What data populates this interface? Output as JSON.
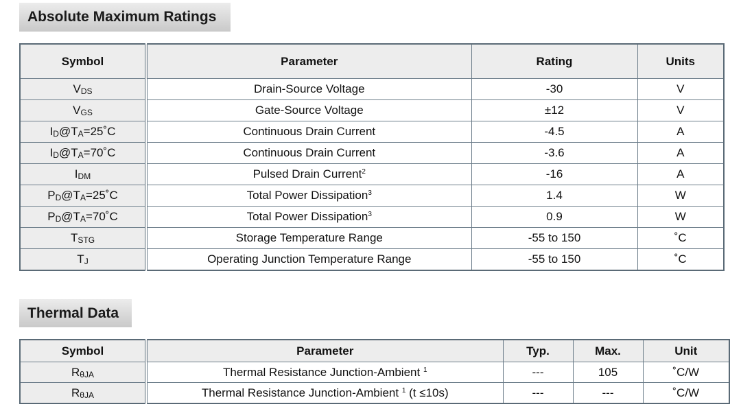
{
  "abs_max": {
    "title": "Absolute Maximum Ratings",
    "headers": [
      "Symbol",
      "Parameter",
      "Rating",
      "Units"
    ],
    "rows": [
      {
        "sym_main": "V",
        "sym_sub": "DS",
        "sym_rest": "",
        "param": "Drain-Source Voltage",
        "param_sup": "",
        "rating": "-30",
        "unit": "V"
      },
      {
        "sym_main": "V",
        "sym_sub": "GS",
        "sym_rest": "",
        "param": "Gate-Source Voltage",
        "param_sup": "",
        "rating": "±12",
        "unit": "V"
      },
      {
        "sym_main": "I",
        "sym_sub": "D",
        "sym_rest": "@T",
        "sym_sub2": "A",
        "sym_rest2": "=25˚C",
        "param": "Continuous Drain Current",
        "param_sup": "",
        "rating": "-4.5",
        "unit": "A"
      },
      {
        "sym_main": "I",
        "sym_sub": "D",
        "sym_rest": "@T",
        "sym_sub2": "A",
        "sym_rest2": "=70˚C",
        "param": "Continuous Drain Current",
        "param_sup": "",
        "rating": "-3.6",
        "unit": "A"
      },
      {
        "sym_main": "I",
        "sym_sub": "DM",
        "sym_rest": "",
        "param": "Pulsed Drain Current",
        "param_sup": "2",
        "rating": "-16",
        "unit": "A"
      },
      {
        "sym_main": "P",
        "sym_sub": "D",
        "sym_rest": "@T",
        "sym_sub2": "A",
        "sym_rest2": "=25˚C",
        "param": "Total Power Dissipation",
        "param_sup": "3",
        "rating": "1.4",
        "unit": "W"
      },
      {
        "sym_main": "P",
        "sym_sub": "D",
        "sym_rest": "@T",
        "sym_sub2": "A",
        "sym_rest2": "=70˚C",
        "param": "Total Power Dissipation",
        "param_sup": "3",
        "rating": "0.9",
        "unit": "W"
      },
      {
        "sym_main": "T",
        "sym_sub": "STG",
        "sym_rest": "",
        "param": "Storage Temperature Range",
        "param_sup": "",
        "rating": "-55 to 150",
        "unit": "˚C"
      },
      {
        "sym_main": "T",
        "sym_sub": "J",
        "sym_rest": "",
        "param": "Operating Junction Temperature Range",
        "param_sup": "",
        "rating": "-55 to 150",
        "unit": "˚C"
      }
    ]
  },
  "thermal": {
    "title": "Thermal Data",
    "headers": [
      "Symbol",
      "Parameter",
      "Typ.",
      "Max.",
      "Unit"
    ],
    "rows": [
      {
        "sym_main": "R",
        "sym_sub": "θJA",
        "param": "Thermal Resistance Junction-Ambient ",
        "param_sup": "1",
        "param_tail": "",
        "typ": "---",
        "max": "105",
        "unit": "˚C/W"
      },
      {
        "sym_main": "R",
        "sym_sub": "θJA",
        "param": "Thermal Resistance Junction-Ambient ",
        "param_sup": "1",
        "param_tail": " (t ≤10s)",
        "typ": "---",
        "max": "---",
        "unit": "˚C/W"
      }
    ]
  }
}
